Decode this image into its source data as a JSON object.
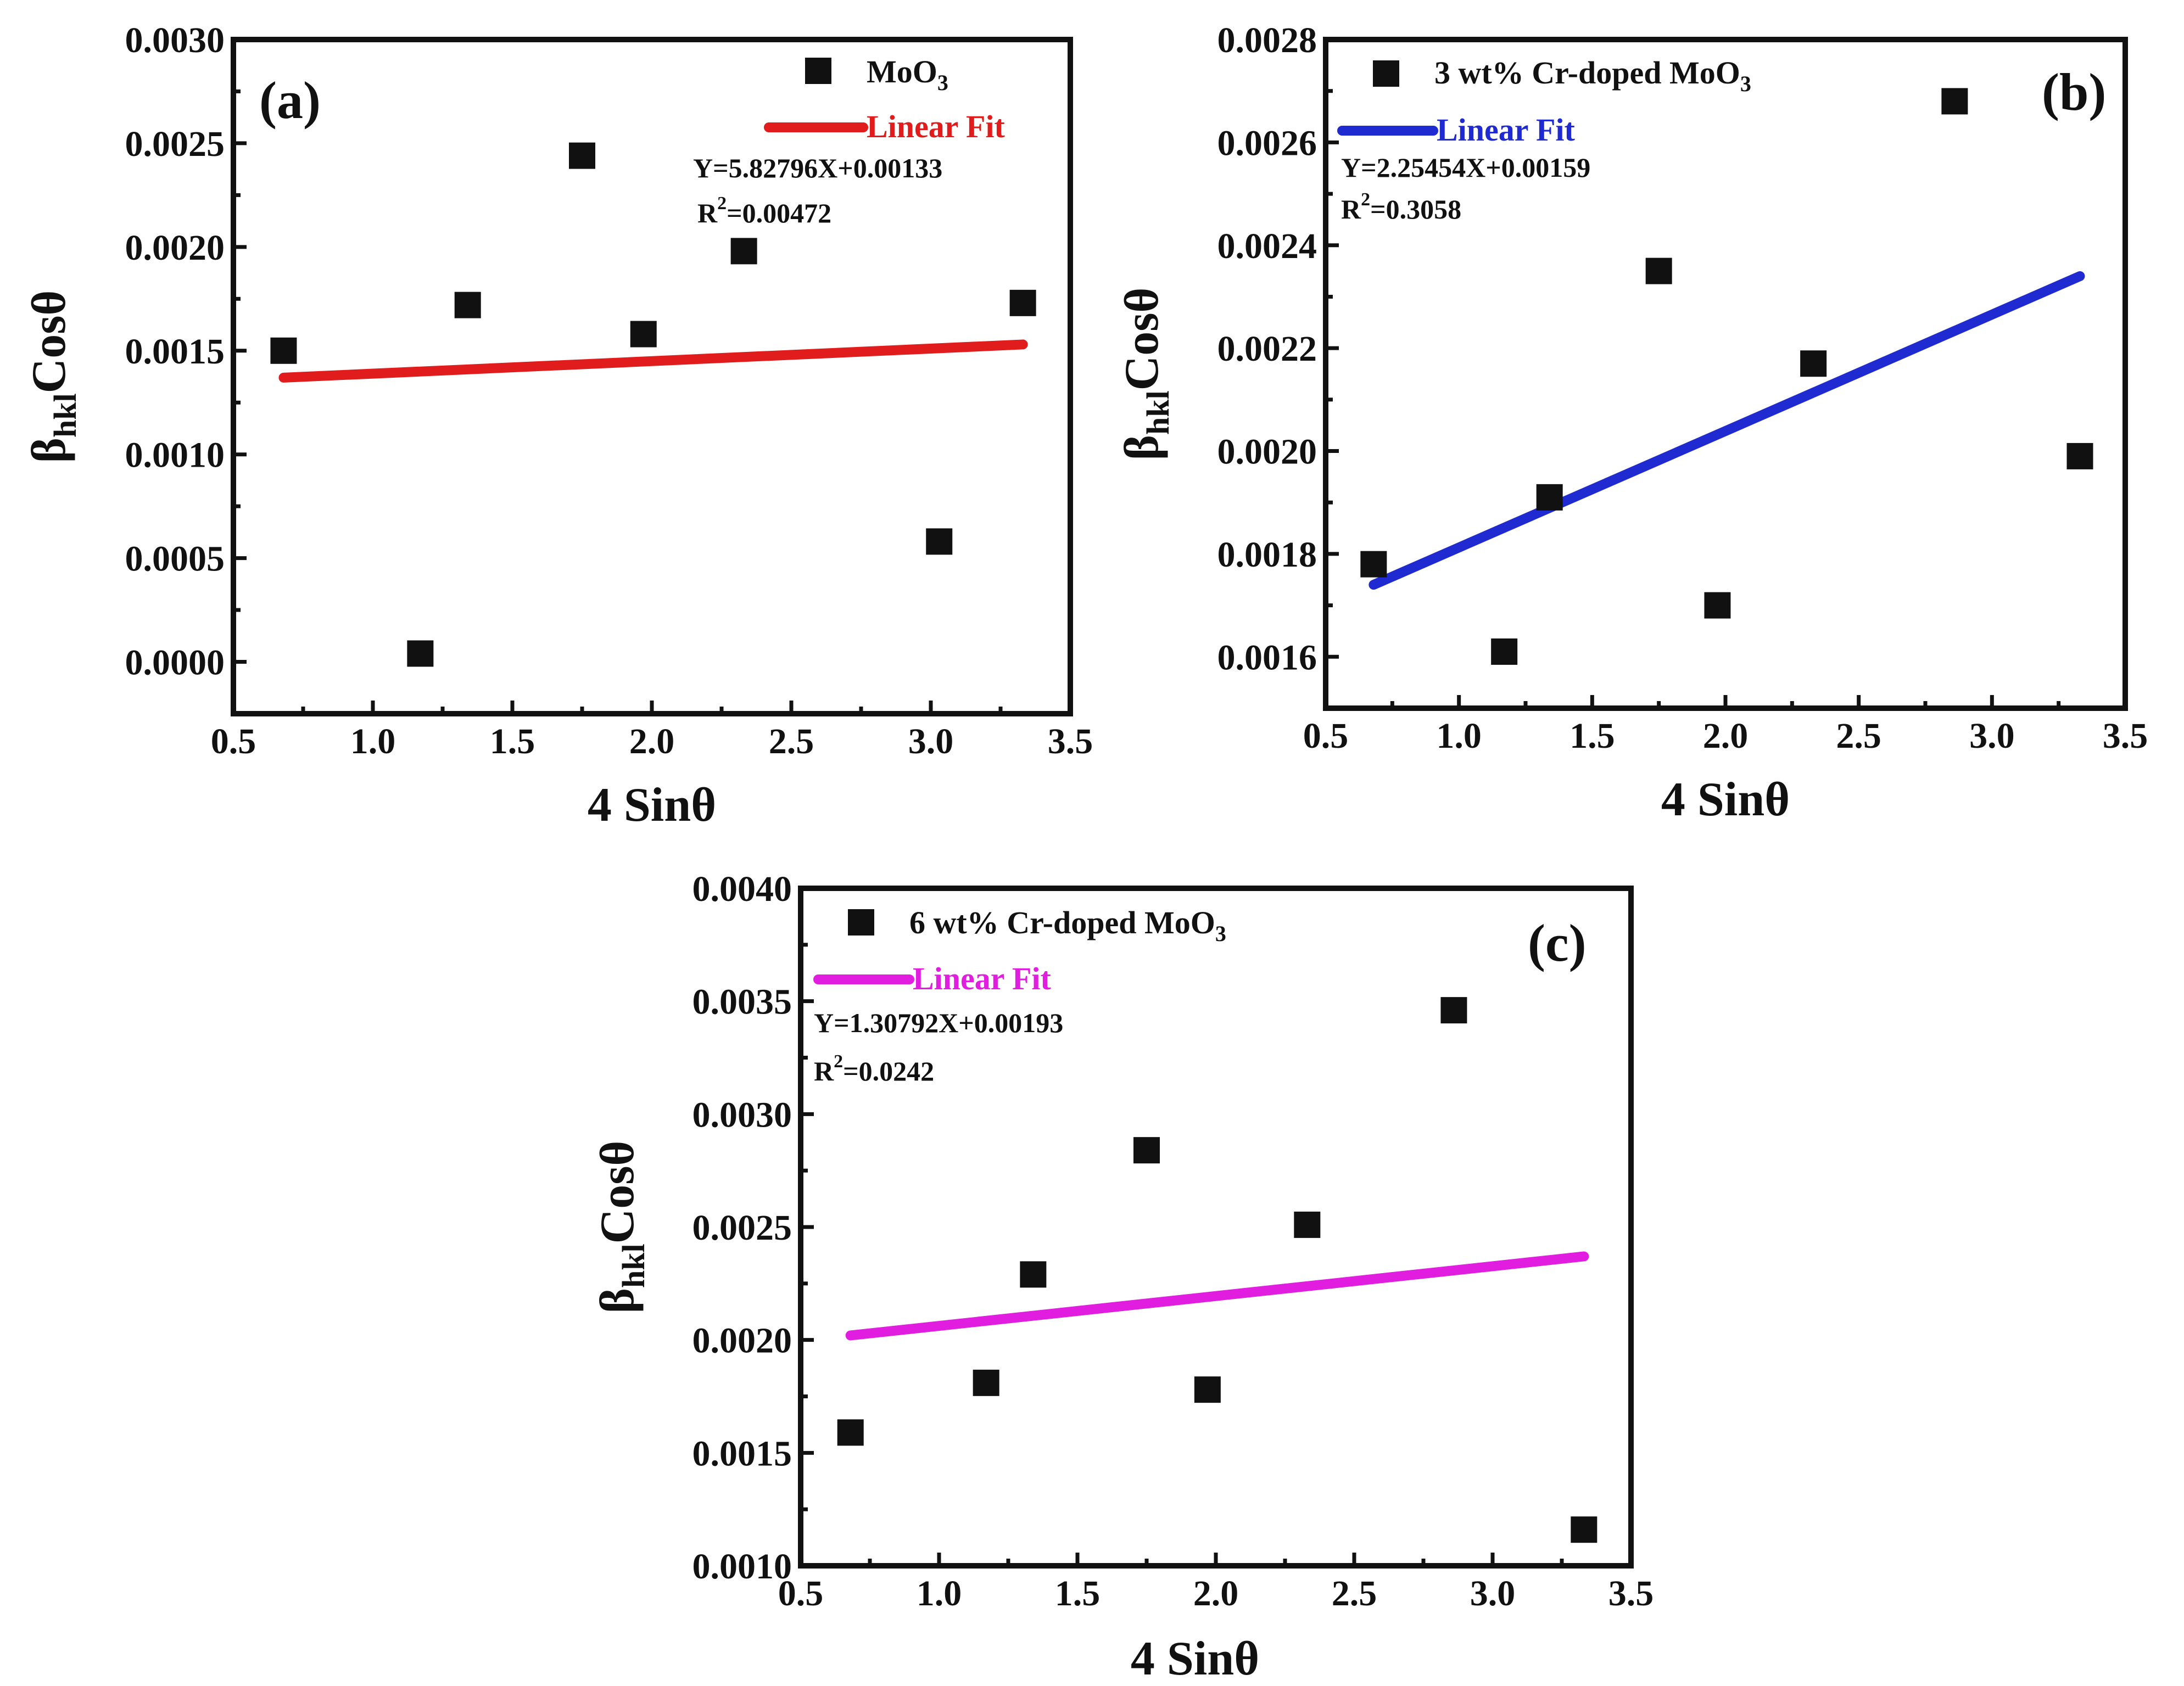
{
  "figure": {
    "panels": [
      {
        "label": "(a)",
        "legend_series": "MoO",
        "legend_series_sub": "3",
        "fit_label": "Linear Fit",
        "equation": "Y=5.82796X+0.00133",
        "r2_prefix": "R",
        "r2_sup": "2",
        "r2_value": "=0.00472",
        "xlabel": "4 Sinθ",
        "ylabel_main": "β",
        "ylabel_sub": "hkl",
        "ylabel_rest": "Cosθ",
        "fit_color": "#e01c1c"
      },
      {
        "label": "(b)",
        "legend_series": "3 wt% Cr-doped MoO",
        "legend_series_sub": "3",
        "fit_label": "Linear Fit",
        "equation": "Y=2.25454X+0.00159",
        "r2_prefix": "R",
        "r2_sup": "2",
        "r2_value": "=0.3058",
        "xlabel": "4 Sinθ",
        "ylabel_main": "β",
        "ylabel_sub": "hkl",
        "ylabel_rest": "Cosθ",
        "fit_color": "#1f2bd1"
      },
      {
        "label": "(c)",
        "legend_series": "6 wt% Cr-doped MoO",
        "legend_series_sub": "3",
        "fit_label": "Linear Fit",
        "equation": "Y=1.30792X+0.00193",
        "r2_prefix": "R",
        "r2_sup": "2",
        "r2_value": "=0.0242",
        "xlabel": "4 Sinθ",
        "ylabel_main": "β",
        "ylabel_sub": "hkl",
        "ylabel_rest": "Cosθ",
        "fit_color": "#e11ee0"
      }
    ]
  },
  "chart_data": [
    {
      "type": "scatter",
      "title": "(a)",
      "xlabel": "4 Sinθ",
      "ylabel": "βhklCosθ",
      "xlim": [
        0.5,
        3.5
      ],
      "ylim": [
        -0.00025,
        0.003
      ],
      "xticks": [
        "0.5",
        "1.0",
        "1.5",
        "2.0",
        "2.5",
        "3.0",
        "3.5"
      ],
      "yticks": [
        "0.0000",
        "0.0005",
        "0.0010",
        "0.0015",
        "0.0020",
        "0.0025",
        "0.0030"
      ],
      "series": [
        {
          "name": "MoO3",
          "x": [
            0.68,
            1.17,
            1.34,
            1.75,
            1.97,
            2.33,
            3.03,
            3.33
          ],
          "y": [
            0.0015,
            4e-05,
            0.00172,
            0.00244,
            0.00158,
            0.00198,
            0.00058,
            0.00173
          ]
        }
      ],
      "fit": {
        "name": "Linear Fit",
        "x": [
          0.68,
          3.33
        ],
        "y": [
          0.00137,
          0.00153
        ],
        "color": "#e01c1c"
      },
      "legend": "top-right"
    },
    {
      "type": "scatter",
      "title": "(b)",
      "xlabel": "4 Sinθ",
      "ylabel": "βhklCosθ",
      "xlim": [
        0.5,
        3.5
      ],
      "ylim": [
        0.0015,
        0.0028
      ],
      "xticks": [
        "0.5",
        "1.0",
        "1.5",
        "2.0",
        "2.5",
        "3.0",
        "3.5"
      ],
      "yticks": [
        "0.0016",
        "0.0018",
        "0.0020",
        "0.0022",
        "0.0024",
        "0.0026",
        "0.0028"
      ],
      "series": [
        {
          "name": "3 wt% Cr-doped MoO3",
          "x": [
            0.68,
            1.17,
            1.34,
            1.75,
            1.97,
            2.33,
            2.86,
            3.33
          ],
          "y": [
            0.00178,
            0.00161,
            0.00191,
            0.00235,
            0.0017,
            0.00217,
            0.00268,
            0.00199
          ]
        }
      ],
      "fit": {
        "name": "Linear Fit",
        "x": [
          0.68,
          3.33
        ],
        "y": [
          0.00174,
          0.00234
        ],
        "color": "#1f2bd1"
      },
      "legend": "top-left"
    },
    {
      "type": "scatter",
      "title": "(c)",
      "xlabel": "4 Sinθ",
      "ylabel": "βhklCosθ",
      "xlim": [
        0.5,
        3.5
      ],
      "ylim": [
        0.001,
        0.004
      ],
      "xticks": [
        "0.5",
        "1.0",
        "1.5",
        "2.0",
        "2.5",
        "3.0",
        "3.5"
      ],
      "yticks": [
        "0.0010",
        "0.0015",
        "0.0020",
        "0.0025",
        "0.0030",
        "0.0035",
        "0.0040"
      ],
      "series": [
        {
          "name": "6 wt% Cr-doped MoO3",
          "x": [
            0.68,
            1.17,
            1.34,
            1.75,
            1.97,
            2.33,
            2.86,
            3.33
          ],
          "y": [
            0.00159,
            0.00181,
            0.00229,
            0.00284,
            0.00178,
            0.00251,
            0.00346,
            0.00116
          ]
        }
      ],
      "fit": {
        "name": "Linear Fit",
        "x": [
          0.68,
          3.33
        ],
        "y": [
          0.00202,
          0.00237
        ],
        "color": "#e11ee0"
      },
      "legend": "top-left"
    }
  ]
}
